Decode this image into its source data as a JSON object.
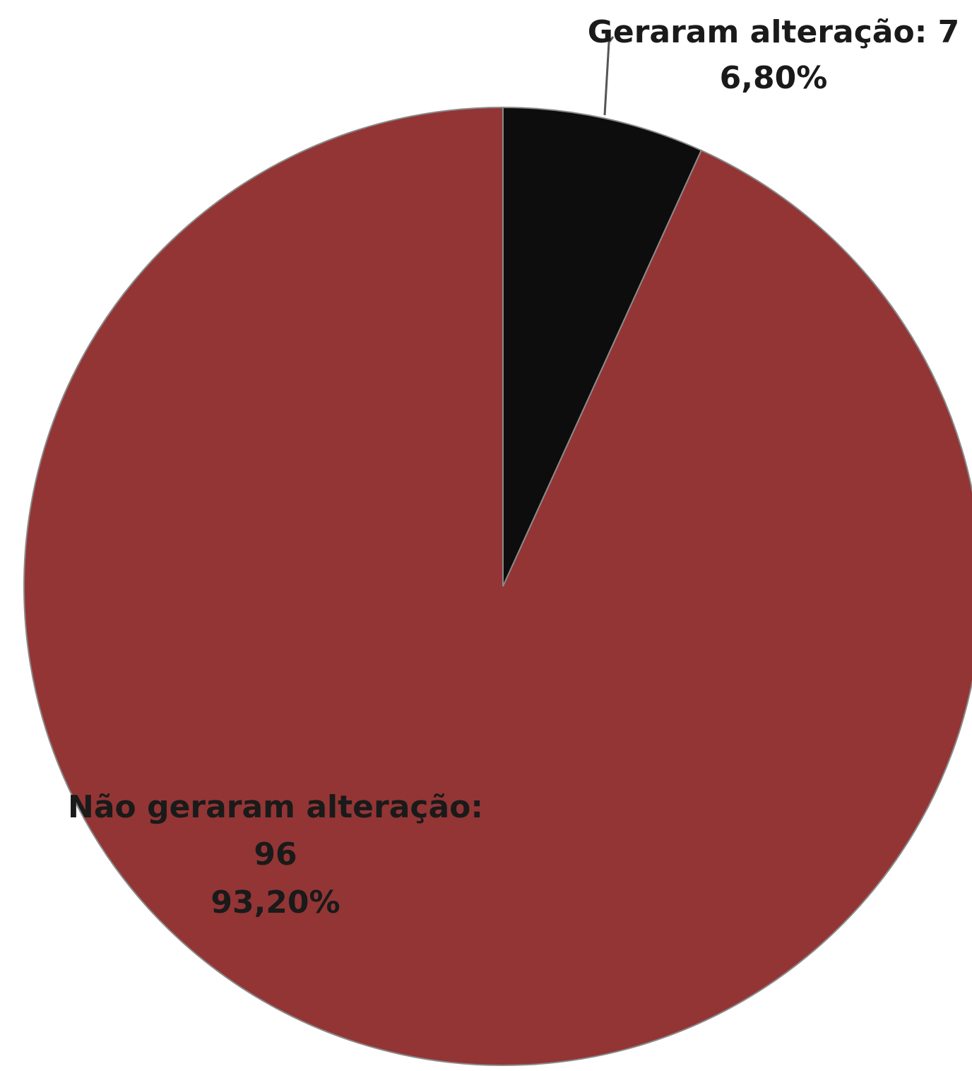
{
  "chart_data": {
    "type": "pie",
    "title": "",
    "slices": [
      {
        "label": "Geraram alteração",
        "value": 7,
        "percent": 6.8,
        "label_text": "Geraram alteração: 7",
        "percent_text": "6,80%",
        "color": "#0d0d0d"
      },
      {
        "label": "Não geraram alteração",
        "value": 96,
        "percent": 93.2,
        "label_text": "Não geraram alteração:",
        "value_text": "96",
        "percent_text": "93,20%",
        "color": "#933535"
      }
    ],
    "start_angle": "top",
    "direction": "clockwise",
    "legend": "none",
    "label_line_color": "#555555"
  }
}
